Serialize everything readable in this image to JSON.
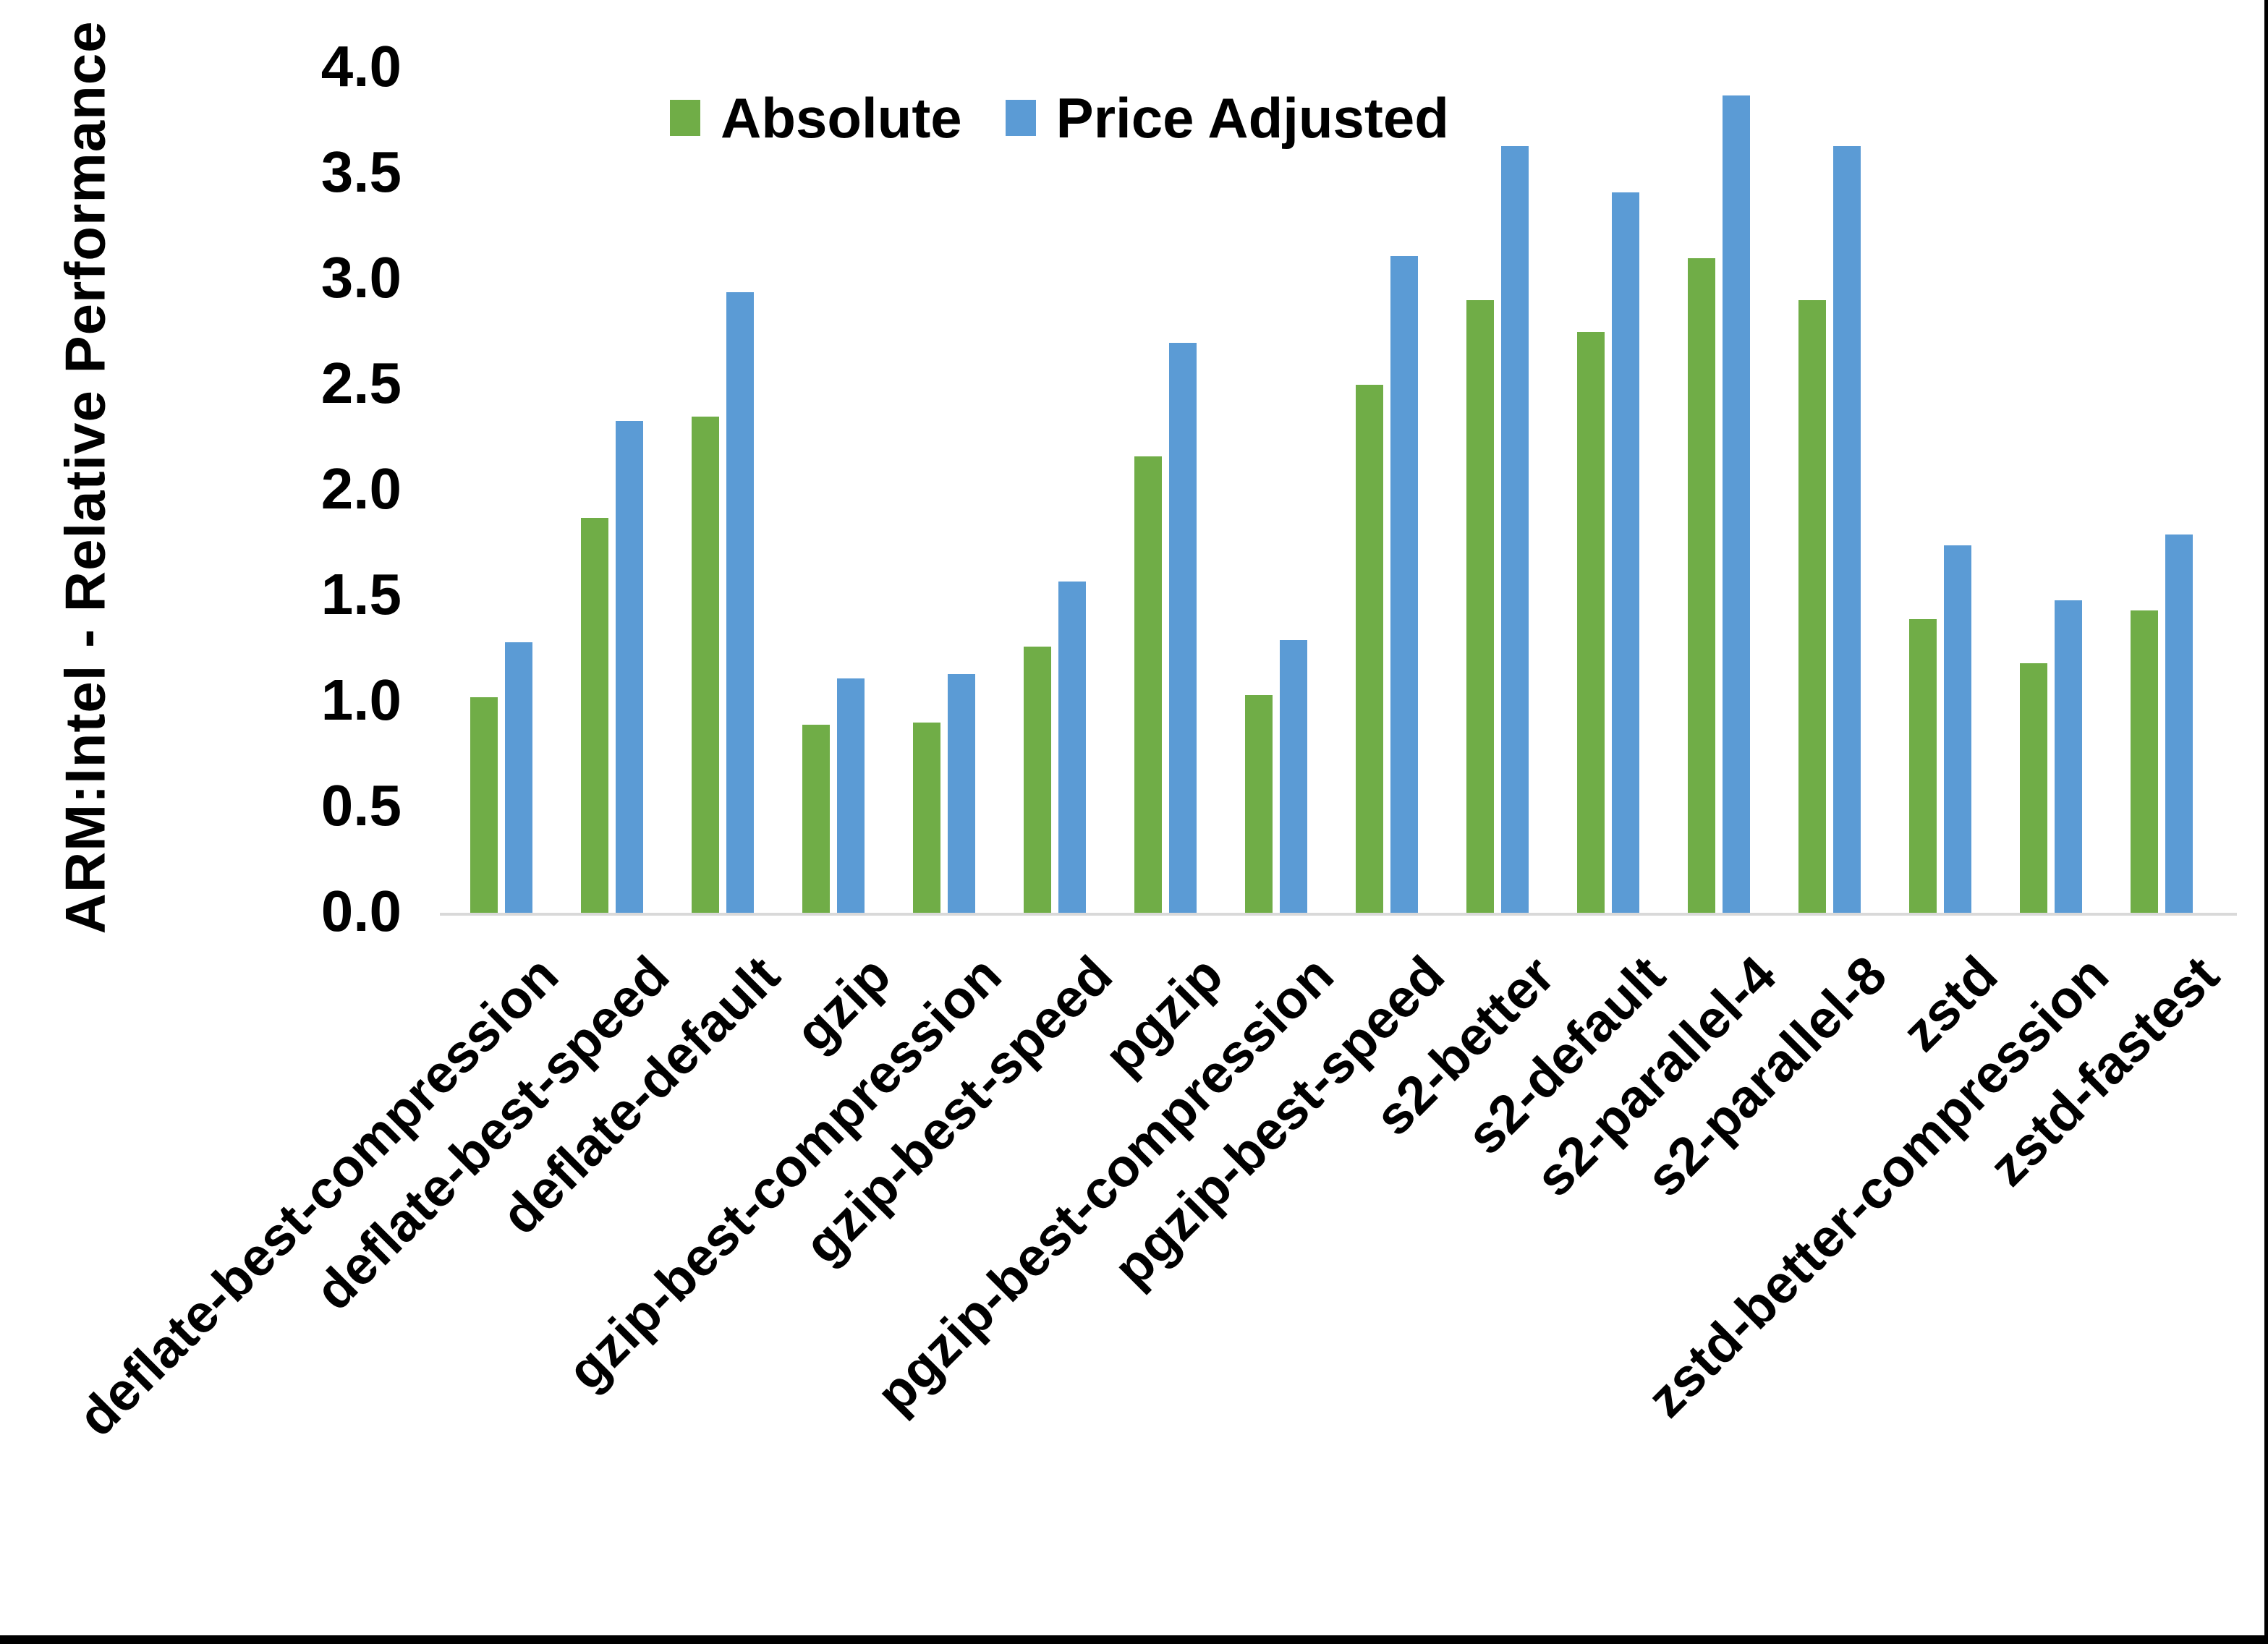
{
  "colors": {
    "absolute": "#70AD47",
    "price_adjusted": "#5B9BD5",
    "axis_line": "#D9D9D9",
    "text": "#000000",
    "border": "#000000",
    "background": "#FFFFFF"
  },
  "legend": {
    "items": [
      {
        "label": "Absolute",
        "color": "#70AD47"
      },
      {
        "label": "Price Adjusted",
        "color": "#5B9BD5"
      }
    ]
  },
  "chart_data": {
    "type": "bar",
    "title": "",
    "xlabel": "",
    "ylabel": "ARM:Intel - Relative Performance",
    "ylim": [
      0,
      4
    ],
    "ytick_step": 0.5,
    "ytick_decimals": 1,
    "grid": false,
    "legend_position": "top-center",
    "categories": [
      "deflate-best-compression",
      "deflate-best-speed",
      "deflate-default",
      "gzip",
      "gzip-best-compression",
      "gzip-best-speed",
      "pgzip",
      "pgzip-best-compression",
      "pgzip-best-speed",
      "s2-better",
      "s2-default",
      "s2-parallel-4",
      "s2-parallel-8",
      "zstd",
      "zstd-better-compression",
      "zstd-fastest"
    ],
    "series": [
      {
        "name": "Absolute",
        "color": "#70AD47",
        "values": [
          1.02,
          1.87,
          2.35,
          0.89,
          0.9,
          1.26,
          2.16,
          1.03,
          2.5,
          2.9,
          2.75,
          3.1,
          2.9,
          1.39,
          1.18,
          1.43
        ]
      },
      {
        "name": "Price Adjusted",
        "color": "#5B9BD5",
        "values": [
          1.28,
          2.33,
          2.94,
          1.11,
          1.13,
          1.57,
          2.7,
          1.29,
          3.11,
          3.63,
          3.41,
          3.87,
          3.63,
          1.74,
          1.48,
          1.79
        ]
      }
    ]
  }
}
